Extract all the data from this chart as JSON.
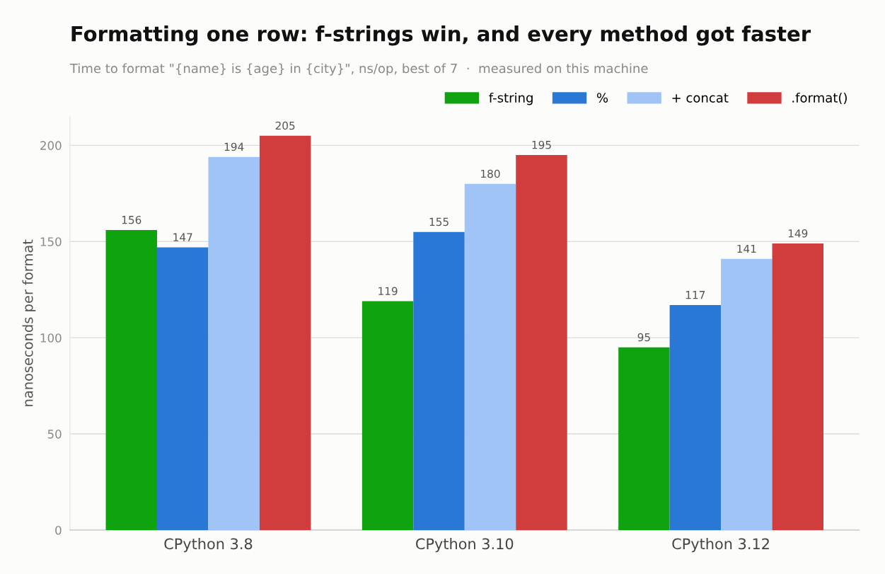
{
  "chart_data": {
    "type": "bar",
    "title": "Formatting one row: f-strings win, and every method got faster",
    "subtitle": "Time to format \"{name} is {age} in {city}\", ns/op, best of 7  ·  measured on this machine",
    "ylabel": "nanoseconds per format",
    "categories": [
      "CPython 3.8",
      "CPython 3.10",
      "CPython 3.12"
    ],
    "series": [
      {
        "name": "f-string",
        "color": "#0ea30f",
        "values": [
          156,
          119,
          95
        ]
      },
      {
        "name": "%",
        "color": "#2a78d6",
        "values": [
          147,
          155,
          117
        ]
      },
      {
        "name": "+ concat",
        "color": "#a0c4f5",
        "values": [
          194,
          180,
          141
        ]
      },
      {
        "name": ".format()",
        "color": "#d13c3c",
        "values": [
          205,
          195,
          149
        ]
      }
    ],
    "ylim": [
      0,
      215
    ],
    "yticks": [
      0,
      50,
      100,
      150,
      200
    ],
    "grid": "y",
    "legend": "top right",
    "data_labels": true
  }
}
